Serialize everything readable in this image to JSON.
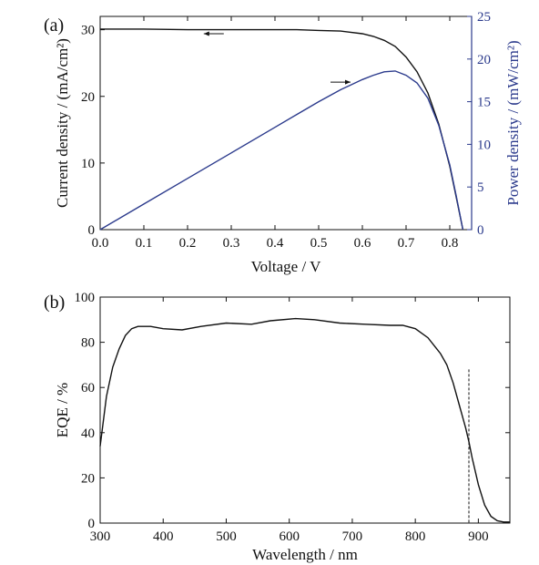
{
  "chart_data": [
    {
      "type": "line",
      "panel_label": "(a)",
      "xlabel": "Voltage / V",
      "ylabel": "Current density / (mA/cm²)",
      "ylabel_right": "Power density / (mW/cm²)",
      "xlim": [
        0.0,
        0.85
      ],
      "ylim": [
        0,
        32
      ],
      "ylim_right": [
        0,
        25
      ],
      "x_ticks": [
        "0.0",
        "0.1",
        "0.2",
        "0.3",
        "0.4",
        "0.5",
        "0.6",
        "0.7",
        "0.8"
      ],
      "y_ticks": [
        "0",
        "10",
        "20",
        "30"
      ],
      "y_ticks_right": [
        "0",
        "5",
        "10",
        "15",
        "20",
        "25"
      ],
      "colors": {
        "current": "#111111",
        "power": "#2b3a8c",
        "right_axis": "#2b3a8c"
      },
      "arrows": [
        {
          "series": "current",
          "direction": "left",
          "x": 0.26,
          "y": 29.4
        },
        {
          "series": "power",
          "direction": "right",
          "x": 0.55,
          "y": 17.3
        }
      ],
      "series": [
        {
          "axis": "left",
          "x": [
            0.0,
            0.1,
            0.2,
            0.3,
            0.4,
            0.45,
            0.5,
            0.55,
            0.6,
            0.625,
            0.65,
            0.675,
            0.7,
            0.725,
            0.75,
            0.775,
            0.8,
            0.815,
            0.83
          ],
          "values": [
            30.1,
            30.1,
            30.0,
            30.0,
            30.0,
            30.0,
            29.9,
            29.8,
            29.4,
            29.0,
            28.4,
            27.5,
            25.9,
            23.7,
            20.5,
            15.8,
            9.5,
            4.8,
            0.0
          ]
        },
        {
          "axis": "right",
          "x": [
            0.0,
            0.1,
            0.2,
            0.3,
            0.4,
            0.45,
            0.5,
            0.55,
            0.6,
            0.625,
            0.65,
            0.675,
            0.7,
            0.725,
            0.75,
            0.775,
            0.8,
            0.815,
            0.83
          ],
          "values": [
            0.0,
            3.0,
            6.0,
            9.0,
            12.0,
            13.5,
            15.0,
            16.4,
            17.6,
            18.1,
            18.5,
            18.6,
            18.1,
            17.2,
            15.4,
            12.2,
            7.6,
            3.9,
            0.0
          ]
        }
      ]
    },
    {
      "type": "line",
      "panel_label": "(b)",
      "xlabel": "Wavelength / nm",
      "ylabel": "EQE / %",
      "xlim": [
        300,
        950
      ],
      "ylim": [
        0,
        100
      ],
      "x_ticks": [
        "300",
        "400",
        "500",
        "600",
        "700",
        "800",
        "900"
      ],
      "y_ticks": [
        "0",
        "20",
        "40",
        "60",
        "80",
        "100"
      ],
      "colors": {
        "eqe": "#111111",
        "cutoff_line": "#111111"
      },
      "cutoff_line": {
        "x": 885,
        "y_top": 68,
        "style": "dashed"
      },
      "series": [
        {
          "x": [
            300,
            310,
            320,
            330,
            340,
            350,
            360,
            380,
            400,
            430,
            460,
            500,
            540,
            570,
            610,
            640,
            680,
            720,
            760,
            780,
            800,
            820,
            840,
            850,
            860,
            870,
            880,
            885,
            890,
            900,
            910,
            920,
            930,
            940,
            950
          ],
          "values": [
            34,
            56,
            69,
            77,
            83,
            86,
            87,
            87,
            86,
            85.5,
            87,
            88.5,
            88,
            89.5,
            90.5,
            90,
            88.5,
            88,
            87.5,
            87.5,
            86,
            82,
            75,
            70,
            62,
            52,
            42,
            36,
            29,
            17,
            8,
            3,
            1,
            0.5,
            0.5
          ]
        }
      ]
    }
  ]
}
